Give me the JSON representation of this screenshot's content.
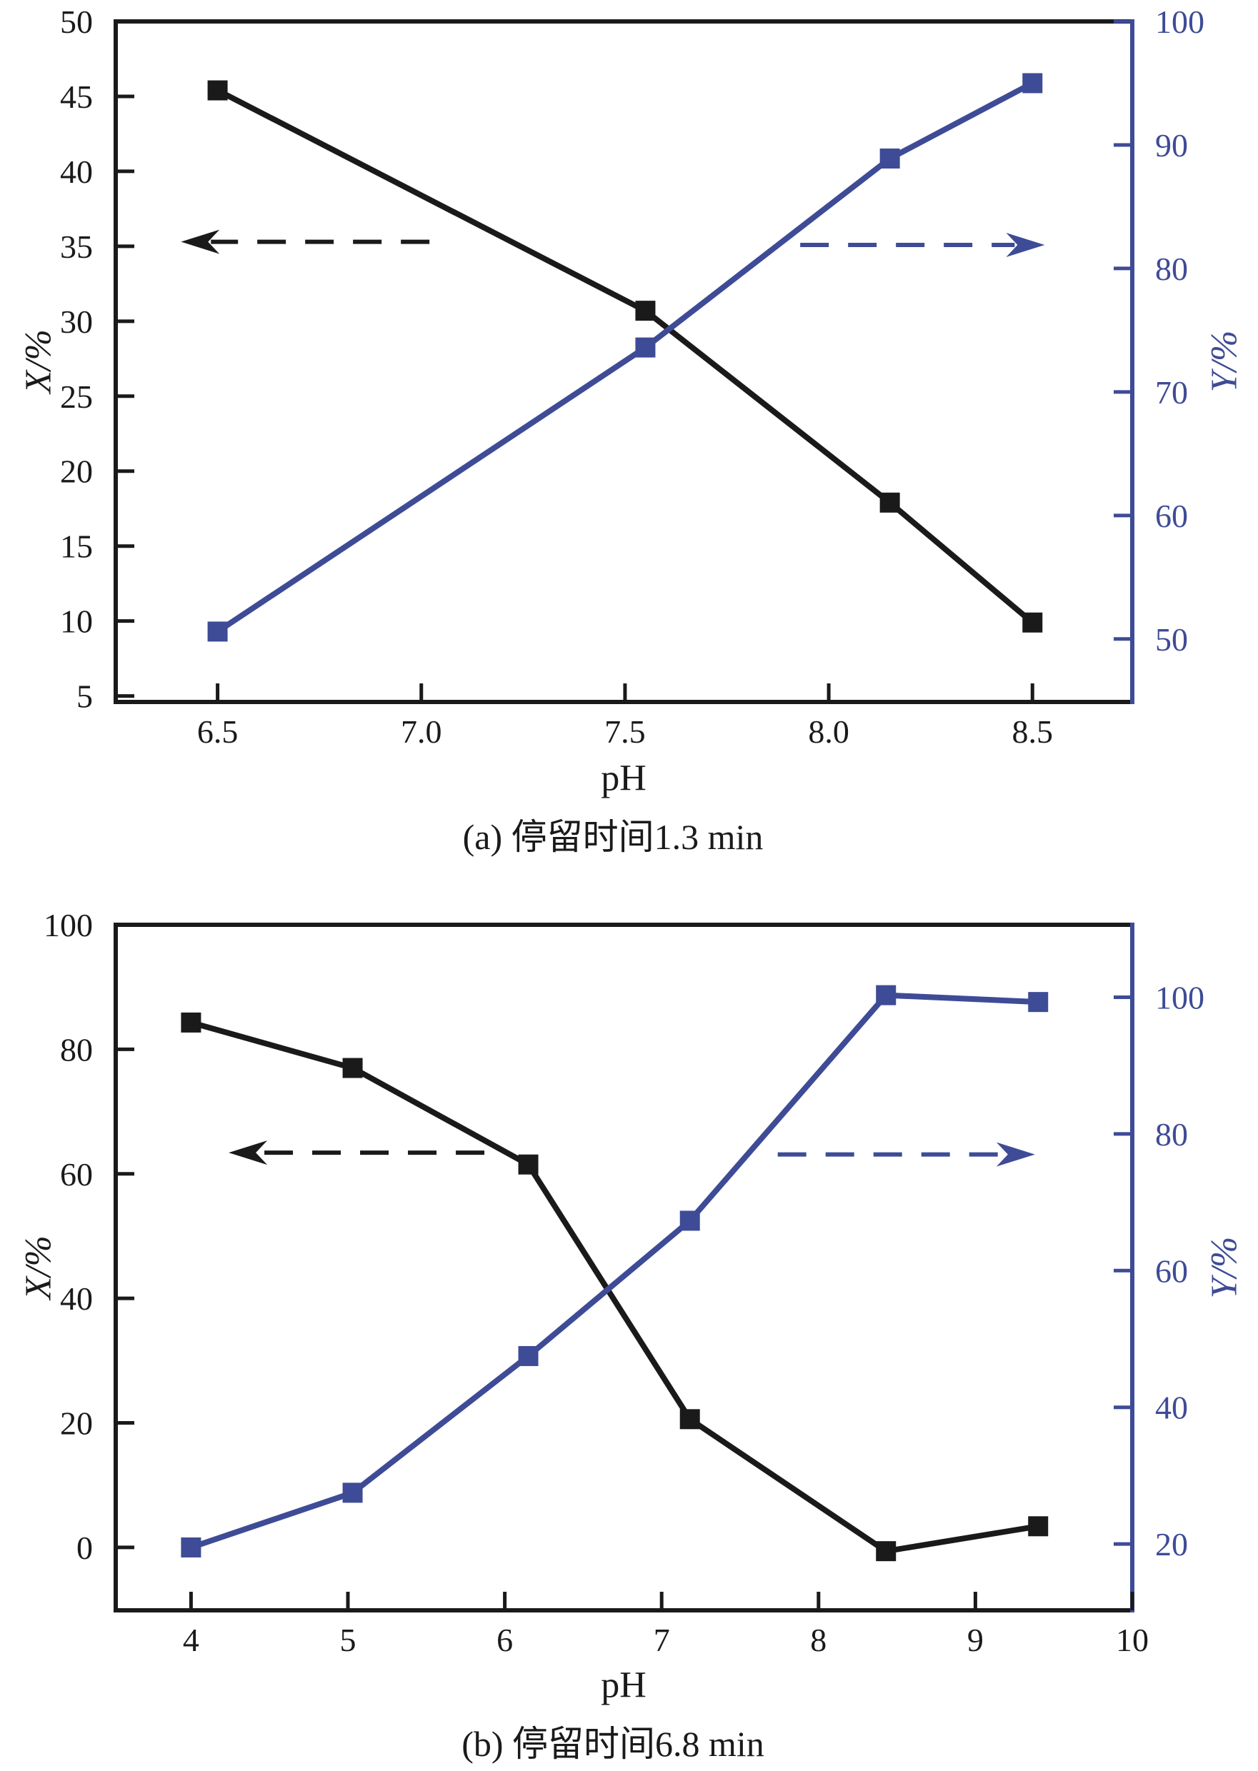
{
  "page": {
    "background": "#ffffff"
  },
  "colors": {
    "black_series": "#1a1a1a",
    "blue_series": "#3e4b96",
    "left_axis": "#1a1a1a",
    "right_axis": "#3e4b96"
  },
  "chart_data": [
    {
      "type": "line",
      "caption": "(a) 停留时间1.3 min",
      "xlabel": "pH",
      "ylabel_left": "X/%",
      "ylabel_right": "Y/%",
      "xlim": [
        6.25,
        8.745
      ],
      "x_ticks": [
        6.5,
        7.0,
        7.5,
        8.0,
        8.5
      ],
      "x_tick_labels": [
        "6.5",
        "7.0",
        "7.5",
        "8.0",
        "8.5"
      ],
      "ylim_left": [
        4.6,
        50
      ],
      "y_ticks_left": [
        5,
        10,
        15,
        20,
        25,
        30,
        35,
        40,
        45,
        50
      ],
      "y_tick_labels_left": [
        "5",
        "10",
        "15",
        "20",
        "25",
        "30",
        "35",
        "40",
        "45",
        "50"
      ],
      "ylim_right": [
        44.9,
        100
      ],
      "y_ticks_right": [
        50,
        60,
        70,
        80,
        90,
        100
      ],
      "y_tick_labels_right": [
        "50",
        "60",
        "70",
        "80",
        "90",
        "100"
      ],
      "grid": false,
      "legend": "none",
      "series": [
        {
          "name": "X/% vs pH (conversion, left axis)",
          "axis": "left",
          "color": "#1a1a1a",
          "x": [
            6.5,
            7.55,
            8.15,
            8.5
          ],
          "y": [
            45.4,
            30.7,
            17.9,
            9.9
          ]
        },
        {
          "name": "Y/% vs pH (yield, right axis)",
          "axis": "right",
          "color": "#3e4b96",
          "x": [
            6.5,
            7.55,
            8.15,
            8.5
          ],
          "y": [
            50.6,
            73.6,
            88.9,
            95.0
          ]
        }
      ],
      "arrows": [
        {
          "axis": "left",
          "color": "#1a1a1a",
          "y": 35.3,
          "x_tail": 7.02,
          "x_tip": 6.41,
          "direction": "left"
        },
        {
          "axis": "right",
          "color": "#3e4b96",
          "y": 81.9,
          "x_tail": 7.93,
          "x_tip": 8.53,
          "direction": "right"
        }
      ]
    },
    {
      "type": "line",
      "caption": "(b) 停留时间6.8 min",
      "xlabel": "pH",
      "ylabel_left": "X/%",
      "ylabel_right": "Y/%",
      "xlim": [
        3.52,
        10.0
      ],
      "x_ticks": [
        4,
        5,
        6,
        7,
        8,
        9,
        10
      ],
      "x_tick_labels": [
        "4",
        "5",
        "6",
        "7",
        "8",
        "9",
        "10"
      ],
      "ylim_left": [
        -10.1,
        100
      ],
      "y_ticks_left": [
        0,
        20,
        40,
        60,
        80,
        100
      ],
      "y_tick_labels_left": [
        "0",
        "20",
        "40",
        "60",
        "80",
        "100"
      ],
      "ylim_right": [
        10.3,
        110.6
      ],
      "y_ticks_right": [
        20,
        40,
        60,
        80,
        100
      ],
      "y_tick_labels_right": [
        "20",
        "40",
        "60",
        "80",
        "100"
      ],
      "grid": false,
      "legend": "none",
      "series": [
        {
          "name": "X/% vs pH (conversion, left axis)",
          "axis": "left",
          "color": "#1a1a1a",
          "x": [
            4.0,
            5.03,
            6.15,
            7.18,
            8.43,
            9.4
          ],
          "y": [
            84.3,
            77.0,
            61.5,
            20.6,
            -0.6,
            3.4
          ]
        },
        {
          "name": "Y/% vs pH (yield, right axis)",
          "axis": "right",
          "color": "#3e4b96",
          "x": [
            4.0,
            5.03,
            6.15,
            7.18,
            8.43,
            9.4
          ],
          "y": [
            19.5,
            27.5,
            47.5,
            67.3,
            100.3,
            99.3
          ]
        }
      ],
      "arrows": [
        {
          "axis": "left",
          "color": "#1a1a1a",
          "y": 63.4,
          "x_tail": 5.87,
          "x_tip": 4.24,
          "direction": "left"
        },
        {
          "axis": "right",
          "color": "#3e4b96",
          "y": 77.0,
          "x_tail": 7.74,
          "x_tip": 9.38,
          "direction": "right"
        }
      ]
    }
  ]
}
